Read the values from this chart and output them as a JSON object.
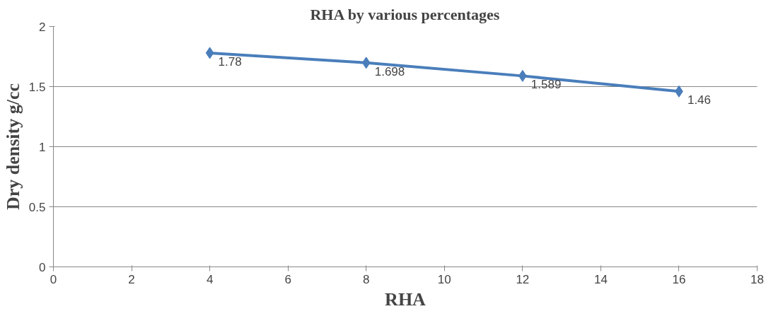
{
  "chart_data": {
    "type": "line",
    "title": "RHA by various percentages",
    "xlabel": "RHA",
    "ylabel": "Dry density g/cc",
    "x": [
      4,
      8,
      12,
      16
    ],
    "series": [
      {
        "color": "#4a7ebb",
        "values": [
          1.78,
          1.698,
          1.589,
          1.46
        ]
      }
    ],
    "xlim": [
      0,
      18
    ],
    "xticks": [
      0,
      2,
      4,
      6,
      8,
      10,
      12,
      14,
      16,
      18
    ],
    "ylim": [
      0,
      2
    ],
    "yticks": [
      0,
      0.5,
      1,
      1.5,
      2
    ],
    "grid": "y",
    "marker": "diamond",
    "line_style": "solid",
    "data_labels": true
  }
}
